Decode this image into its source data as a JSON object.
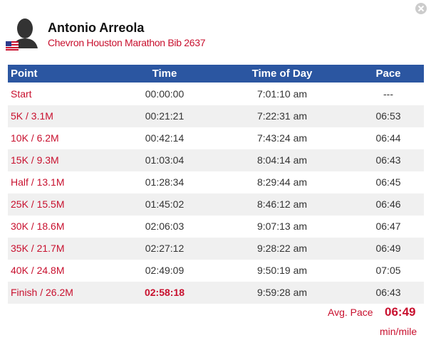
{
  "header": {
    "name": "Antonio Arreola",
    "subtitle": "Chevron Houston Marathon Bib 2637"
  },
  "table": {
    "columns": [
      "Point",
      "Time",
      "Time of Day",
      "Pace"
    ],
    "rows": [
      [
        "Start",
        "00:00:00",
        "7:01:10 am",
        "---"
      ],
      [
        "5K / 3.1M",
        "00:21:21",
        "7:22:31 am",
        "06:53"
      ],
      [
        "10K / 6.2M",
        "00:42:14",
        "7:43:24 am",
        "06:44"
      ],
      [
        "15K / 9.3M",
        "01:03:04",
        "8:04:14 am",
        "06:43"
      ],
      [
        "Half / 13.1M",
        "01:28:34",
        "8:29:44 am",
        "06:45"
      ],
      [
        "25K / 15.5M",
        "01:45:02",
        "8:46:12 am",
        "06:46"
      ],
      [
        "30K / 18.6M",
        "02:06:03",
        "9:07:13 am",
        "06:47"
      ],
      [
        "35K / 21.7M",
        "02:27:12",
        "9:28:22 am",
        "06:49"
      ],
      [
        "40K / 24.8M",
        "02:49:09",
        "9:50:19 am",
        "07:05"
      ],
      [
        "Finish / 26.2M",
        "02:58:18",
        "9:59:28 am",
        "06:43"
      ]
    ]
  },
  "footer": {
    "avg_pace_label": "Avg. Pace",
    "avg_pace": "06:49",
    "unit": "min/mile"
  }
}
